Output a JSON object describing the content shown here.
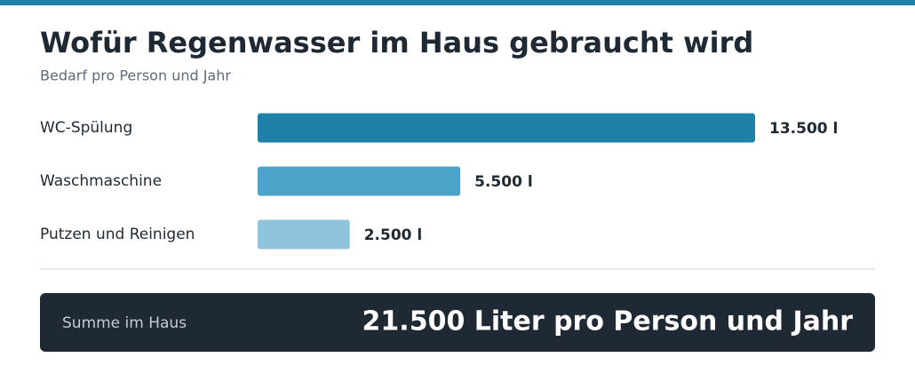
{
  "chart_data": {
    "type": "bar",
    "orientation": "horizontal",
    "title": "Wofür Regenwasser im Haus gebraucht wird",
    "subtitle": "Bedarf pro Person und Jahr",
    "categories": [
      "WC-Spülung",
      "Waschmaschine",
      "Putzen und Reinigen"
    ],
    "series": [
      {
        "colors": [
          "#1f80a8",
          "#4ba3c9",
          "#8fc5dc"
        ],
        "values": [
          13500,
          5500,
          2500
        ],
        "value_labels": [
          "13.500 l",
          "5.500 l",
          "2.500 l"
        ]
      }
    ],
    "summary": {
      "label": "Summe im Haus",
      "value_text": "21.500 Liter pro Person und Jahr"
    }
  }
}
